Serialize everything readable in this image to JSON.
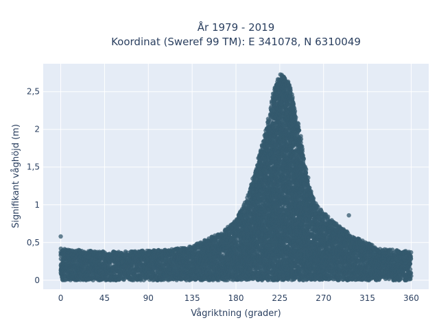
{
  "chart_data": {
    "type": "scatter",
    "title": "År 1979 - 2019",
    "subtitle": "Koordinat (Sweref 99 TM): E 341078, N 6310049",
    "xlabel": "Vågriktning (grader)",
    "ylabel": "Signifikant våghöjd (m)",
    "xlim": [
      -18,
      378
    ],
    "ylim": [
      -0.12,
      2.87
    ],
    "xticks": [
      0,
      45,
      90,
      135,
      180,
      225,
      270,
      315,
      360
    ],
    "yticks": [
      0,
      0.5,
      1,
      1.5,
      2,
      2.5
    ],
    "ytick_labels": [
      "0",
      "0,5",
      "1",
      "1,5",
      "2",
      "2,5"
    ],
    "grid": true,
    "background": "#e5ecf6",
    "marker_color": "#34596e",
    "envelope": {
      "direction": [
        0,
        10,
        20,
        30,
        45,
        60,
        75,
        90,
        105,
        120,
        135,
        150,
        165,
        180,
        190,
        200,
        210,
        215,
        220,
        225,
        230,
        235,
        240,
        245,
        250,
        255,
        260,
        270,
        280,
        290,
        300,
        315,
        330,
        345,
        360
      ],
      "max_height": [
        0.42,
        0.4,
        0.4,
        0.4,
        0.38,
        0.38,
        0.38,
        0.4,
        0.4,
        0.42,
        0.45,
        0.55,
        0.62,
        0.8,
        1.05,
        1.45,
        1.95,
        2.25,
        2.6,
        2.75,
        2.7,
        2.6,
        2.3,
        2.0,
        1.6,
        1.3,
        1.05,
        0.9,
        0.78,
        0.68,
        0.58,
        0.5,
        0.42,
        0.4,
        0.38
      ],
      "min_height": 0.0
    },
    "outliers": [
      {
        "x": 0,
        "y": 0.58
      },
      {
        "x": 296,
        "y": 0.86
      }
    ]
  }
}
